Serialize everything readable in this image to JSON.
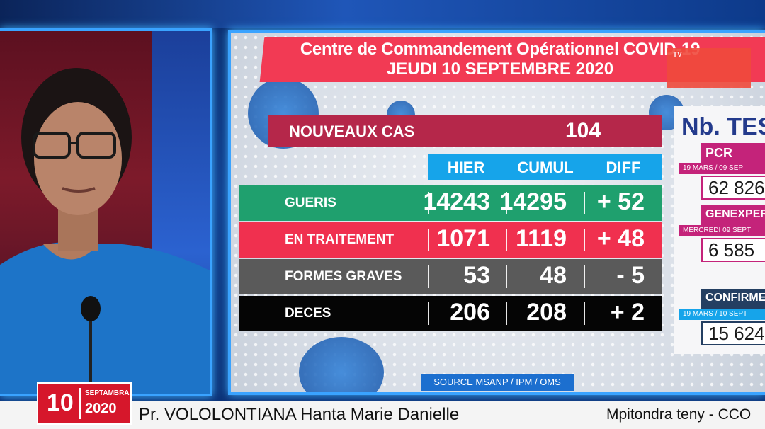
{
  "title": {
    "line1": "Centre de Commandement Opérationnel COVID-19",
    "line2": "JEUDI 10 SEPTEMBRE 2020",
    "logo_text": "TV"
  },
  "new_cases": {
    "label": "NOUVEAUX CAS",
    "value": "104"
  },
  "columns": {
    "hier": "HIER",
    "cumul": "CUMUL",
    "diff": "DIFF"
  },
  "rows": [
    {
      "label": "GUERIS",
      "hier": "14243",
      "cumul": "14295",
      "diff": "+ 52",
      "color": "#1fa06e"
    },
    {
      "label": "EN TRAITEMENT",
      "hier": "1071",
      "cumul": "1119",
      "diff": "+ 48",
      "color": "#f0304f"
    },
    {
      "label": "FORMES GRAVES",
      "hier": "53",
      "cumul": "48",
      "diff": "- 5",
      "color": "#5a5a5a"
    },
    {
      "label": "DECES",
      "hier": "206",
      "cumul": "208",
      "diff": "+ 2",
      "color": "#050505"
    }
  ],
  "source": "SOURCE MSANP / IPM / OMS",
  "tests": {
    "title": "Nb. TES",
    "pcr": {
      "label": "PCR",
      "date": "19 MARS / 09 SEP",
      "value": "62 826"
    },
    "genexpert": {
      "label": "GENEXPER",
      "date": "MERCREDI 09 SEPT",
      "value": "6 585"
    },
    "confirmes": {
      "label": "CONFIRME",
      "date": "19 MARS / 10 SEPT",
      "value": "15 624"
    }
  },
  "lower_third": {
    "day": "10",
    "month": "SEPTAMBRA",
    "year": "2020",
    "speaker": "Pr. VOLOLONTIANA Hanta Marie Danielle",
    "role": "Mpitondra teny - CCO"
  },
  "colors": {
    "accent": "#f23a54",
    "header": "#16a4ea",
    "frame": "#3aa3ff"
  }
}
